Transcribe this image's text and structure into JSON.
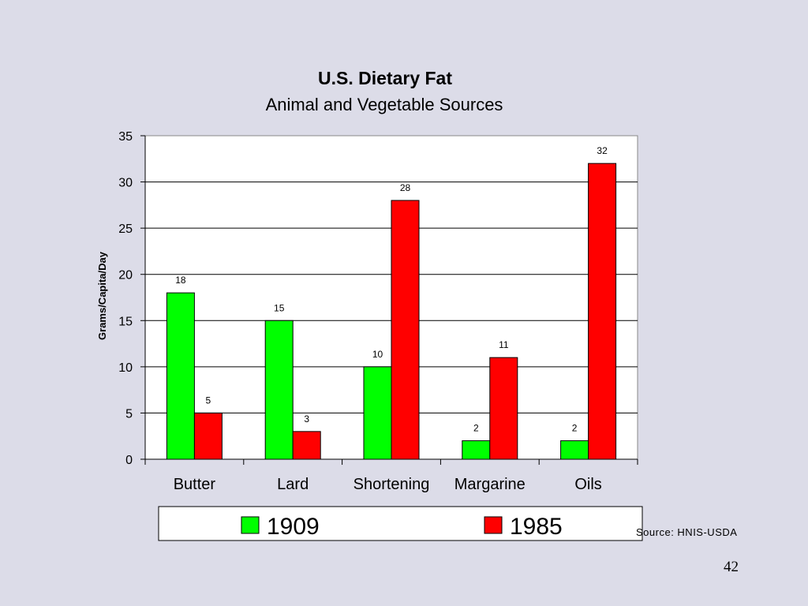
{
  "chart_data": {
    "type": "bar",
    "title": "U.S. Dietary Fat",
    "subtitle": "Animal and Vegetable Sources",
    "ylabel": "Grams/Capita/Day",
    "xlabel": "",
    "categories": [
      "Butter",
      "Lard",
      "Shortening",
      "Margarine",
      "Oils"
    ],
    "series": [
      {
        "name": "1909",
        "values": [
          18,
          15,
          10,
          2,
          2
        ],
        "color": "#00ff00"
      },
      {
        "name": "1985",
        "values": [
          5,
          3,
          28,
          11,
          32
        ],
        "color": "#ff0000"
      }
    ],
    "ylim": [
      0,
      35
    ],
    "yticks": [
      0,
      5,
      10,
      15,
      20,
      25,
      30,
      35
    ],
    "grid": true,
    "legend": "bottom",
    "plot_background": "#ffffff"
  },
  "source": "Source: HNIS-USDA",
  "page_number": "42"
}
